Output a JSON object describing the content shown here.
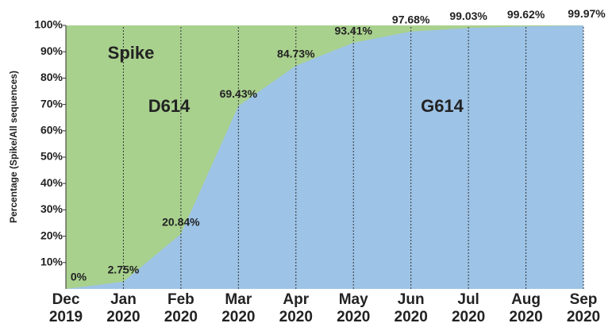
{
  "chart_data": {
    "type": "area",
    "y_axis_label": "Percentage (Spike/All sequences)",
    "annotations": [
      "Spike",
      "D614",
      "G614"
    ],
    "categories": [
      "Dec 2019",
      "Jan 2020",
      "Feb 2020",
      "Mar 2020",
      "Apr 2020",
      "May 2020",
      "Jun 2020",
      "Jul 2020",
      "Aug 2020",
      "Sep 2020"
    ],
    "series": [
      {
        "name": "G614",
        "color": "#9dc3e6",
        "values": [
          0,
          2.75,
          20.84,
          69.43,
          84.73,
          93.41,
          97.68,
          99.03,
          99.62,
          99.97
        ],
        "value_labels": [
          "0%",
          "2.75%",
          "20.84%",
          "69.43%",
          "84.73%",
          "93.41%",
          "97.68%",
          "99.03%",
          "99.62%",
          "99.97%"
        ]
      }
    ],
    "background_color": "#a9d18e",
    "ylim": [
      0,
      100
    ],
    "yticks": [
      {
        "value": 10,
        "label": "10%"
      },
      {
        "value": 20,
        "label": "20%"
      },
      {
        "value": 30,
        "label": "30%"
      },
      {
        "value": 40,
        "label": "40%"
      },
      {
        "value": 50,
        "label": "50%"
      },
      {
        "value": 60,
        "label": "60%"
      },
      {
        "value": 70,
        "label": "70%"
      },
      {
        "value": 80,
        "label": "80%"
      },
      {
        "value": 90,
        "label": "90%"
      },
      {
        "value": 100,
        "label": "100%"
      }
    ],
    "category_guides": true
  }
}
